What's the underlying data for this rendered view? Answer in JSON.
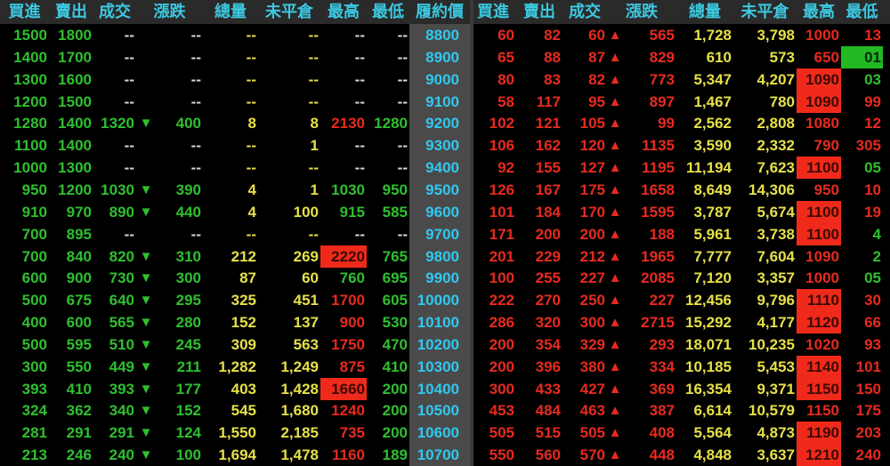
{
  "headers_left": [
    "買進",
    "賣出",
    "成交",
    "漲跌",
    "總量",
    "未平倉",
    "最高",
    "最低"
  ],
  "header_strike": "履約價",
  "headers_right": [
    "買進",
    "賣出",
    "成交",
    "漲跌",
    "總量",
    "未平倉",
    "最高",
    "最低"
  ],
  "colors": {
    "up": "#e82a1e",
    "down": "#2fbf2f",
    "volume": "#e6e048",
    "strike": "#30c8f0",
    "header": "#3cc8e0"
  },
  "calls": [
    {
      "bid": "1500",
      "ask": "1800",
      "last": "--",
      "arrow": "",
      "chg": "--",
      "vol": "--",
      "oi": "--",
      "high": "--",
      "high_style": "w",
      "low": "--",
      "low_style": "w"
    },
    {
      "bid": "1400",
      "ask": "1700",
      "last": "--",
      "arrow": "",
      "chg": "--",
      "vol": "--",
      "oi": "--",
      "high": "--",
      "high_style": "w",
      "low": "--",
      "low_style": "w"
    },
    {
      "bid": "1300",
      "ask": "1600",
      "last": "--",
      "arrow": "",
      "chg": "--",
      "vol": "--",
      "oi": "--",
      "high": "--",
      "high_style": "w",
      "low": "--",
      "low_style": "w"
    },
    {
      "bid": "1200",
      "ask": "1500",
      "last": "--",
      "arrow": "",
      "chg": "--",
      "vol": "--",
      "oi": "--",
      "high": "--",
      "high_style": "w",
      "low": "--",
      "low_style": "w"
    },
    {
      "bid": "1280",
      "ask": "1400",
      "last": "1320",
      "arrow": "▼",
      "chg": "400",
      "vol": "8",
      "oi": "8",
      "high": "2130",
      "high_style": "r",
      "low": "1280",
      "low_style": "g"
    },
    {
      "bid": "1100",
      "ask": "1400",
      "last": "--",
      "arrow": "",
      "chg": "--",
      "vol": "--",
      "oi": "1",
      "high": "--",
      "high_style": "w",
      "low": "--",
      "low_style": "w"
    },
    {
      "bid": "1000",
      "ask": "1300",
      "last": "--",
      "arrow": "",
      "chg": "--",
      "vol": "--",
      "oi": "--",
      "high": "--",
      "high_style": "w",
      "low": "--",
      "low_style": "w"
    },
    {
      "bid": "950",
      "ask": "1200",
      "last": "1030",
      "arrow": "▼",
      "chg": "390",
      "vol": "4",
      "oi": "1",
      "high": "1030",
      "high_style": "g",
      "low": "950",
      "low_style": "g"
    },
    {
      "bid": "910",
      "ask": "970",
      "last": "890",
      "arrow": "▼",
      "chg": "440",
      "vol": "4",
      "oi": "100",
      "high": "915",
      "high_style": "g",
      "low": "585",
      "low_style": "g"
    },
    {
      "bid": "700",
      "ask": "895",
      "last": "--",
      "arrow": "",
      "chg": "--",
      "vol": "--",
      "oi": "--",
      "high": "--",
      "high_style": "w",
      "low": "--",
      "low_style": "w"
    },
    {
      "bid": "700",
      "ask": "840",
      "last": "820",
      "arrow": "▼",
      "chg": "310",
      "vol": "212",
      "oi": "269",
      "high": "2220",
      "high_style": "R",
      "low": "765",
      "low_style": "g"
    },
    {
      "bid": "600",
      "ask": "900",
      "last": "730",
      "arrow": "▼",
      "chg": "300",
      "vol": "87",
      "oi": "60",
      "high": "760",
      "high_style": "g",
      "low": "695",
      "low_style": "g"
    },
    {
      "bid": "500",
      "ask": "675",
      "last": "640",
      "arrow": "▼",
      "chg": "295",
      "vol": "325",
      "oi": "451",
      "high": "1700",
      "high_style": "r",
      "low": "605",
      "low_style": "g"
    },
    {
      "bid": "400",
      "ask": "600",
      "last": "565",
      "arrow": "▼",
      "chg": "280",
      "vol": "152",
      "oi": "137",
      "high": "900",
      "high_style": "r",
      "low": "530",
      "low_style": "g"
    },
    {
      "bid": "500",
      "ask": "595",
      "last": "510",
      "arrow": "▼",
      "chg": "245",
      "vol": "309",
      "oi": "563",
      "high": "1750",
      "high_style": "r",
      "low": "470",
      "low_style": "g"
    },
    {
      "bid": "300",
      "ask": "550",
      "last": "449",
      "arrow": "▼",
      "chg": "211",
      "vol": "1,282",
      "oi": "1,249",
      "high": "875",
      "high_style": "r",
      "low": "410",
      "low_style": "g"
    },
    {
      "bid": "393",
      "ask": "410",
      "last": "393",
      "arrow": "▼",
      "chg": "177",
      "vol": "403",
      "oi": "1,428",
      "high": "1660",
      "high_style": "R",
      "low": "200",
      "low_style": "g"
    },
    {
      "bid": "324",
      "ask": "362",
      "last": "340",
      "arrow": "▼",
      "chg": "152",
      "vol": "545",
      "oi": "1,680",
      "high": "1240",
      "high_style": "r",
      "low": "200",
      "low_style": "g"
    },
    {
      "bid": "281",
      "ask": "291",
      "last": "291",
      "arrow": "▼",
      "chg": "124",
      "vol": "1,550",
      "oi": "2,185",
      "high": "735",
      "high_style": "r",
      "low": "200",
      "low_style": "g"
    },
    {
      "bid": "213",
      "ask": "246",
      "last": "240",
      "arrow": "▼",
      "chg": "100",
      "vol": "1,694",
      "oi": "1,478",
      "high": "1160",
      "high_style": "r",
      "low": "189",
      "low_style": "g"
    }
  ],
  "strikes": [
    "8800",
    "8900",
    "9000",
    "9100",
    "9200",
    "9300",
    "9400",
    "9500",
    "9600",
    "9700",
    "9800",
    "9900",
    "10000",
    "10100",
    "10200",
    "10300",
    "10400",
    "10500",
    "10600",
    "10700"
  ],
  "puts": [
    {
      "bid": "60",
      "ask": "82",
      "last": "60",
      "arrow": "▲",
      "chg": "565",
      "vol": "1,728",
      "oi": "3,798",
      "high": "1000",
      "high_style": "r",
      "low": "13",
      "low_style": "r"
    },
    {
      "bid": "65",
      "ask": "88",
      "last": "87",
      "arrow": "▲",
      "chg": "829",
      "vol": "610",
      "oi": "573",
      "high": "650",
      "high_style": "r",
      "low": "01",
      "low_style": "G"
    },
    {
      "bid": "80",
      "ask": "83",
      "last": "82",
      "arrow": "▲",
      "chg": "773",
      "vol": "5,347",
      "oi": "4,207",
      "high": "1090",
      "high_style": "R",
      "low": "03",
      "low_style": "g"
    },
    {
      "bid": "58",
      "ask": "117",
      "last": "95",
      "arrow": "▲",
      "chg": "897",
      "vol": "1,467",
      "oi": "780",
      "high": "1090",
      "high_style": "R",
      "low": "99",
      "low_style": "r"
    },
    {
      "bid": "102",
      "ask": "121",
      "last": "105",
      "arrow": "▲",
      "chg": "99",
      "vol": "2,562",
      "oi": "2,808",
      "high": "1080",
      "high_style": "r",
      "low": "12",
      "low_style": "r"
    },
    {
      "bid": "106",
      "ask": "162",
      "last": "120",
      "arrow": "▲",
      "chg": "1135",
      "vol": "3,590",
      "oi": "2,332",
      "high": "790",
      "high_style": "r",
      "low": "305",
      "low_style": "r"
    },
    {
      "bid": "92",
      "ask": "155",
      "last": "127",
      "arrow": "▲",
      "chg": "1195",
      "vol": "11,194",
      "oi": "7,623",
      "high": "1100",
      "high_style": "R",
      "low": "05",
      "low_style": "g"
    },
    {
      "bid": "126",
      "ask": "167",
      "last": "175",
      "arrow": "▲",
      "chg": "1658",
      "vol": "8,649",
      "oi": "14,306",
      "high": "950",
      "high_style": "r",
      "low": "10",
      "low_style": "r"
    },
    {
      "bid": "101",
      "ask": "184",
      "last": "170",
      "arrow": "▲",
      "chg": "1595",
      "vol": "3,787",
      "oi": "5,674",
      "high": "1100",
      "high_style": "R",
      "low": "19",
      "low_style": "r"
    },
    {
      "bid": "171",
      "ask": "200",
      "last": "200",
      "arrow": "▲",
      "chg": "188",
      "vol": "5,961",
      "oi": "3,738",
      "high": "1100",
      "high_style": "R",
      "low": "4",
      "low_style": "g"
    },
    {
      "bid": "201",
      "ask": "229",
      "last": "212",
      "arrow": "▲",
      "chg": "1965",
      "vol": "7,777",
      "oi": "7,604",
      "high": "1090",
      "high_style": "r",
      "low": "2",
      "low_style": "g"
    },
    {
      "bid": "100",
      "ask": "255",
      "last": "227",
      "arrow": "▲",
      "chg": "2085",
      "vol": "7,120",
      "oi": "3,357",
      "high": "1000",
      "high_style": "r",
      "low": "05",
      "low_style": "g"
    },
    {
      "bid": "222",
      "ask": "270",
      "last": "250",
      "arrow": "▲",
      "chg": "227",
      "vol": "12,456",
      "oi": "9,796",
      "high": "1110",
      "high_style": "R",
      "low": "30",
      "low_style": "r"
    },
    {
      "bid": "286",
      "ask": "320",
      "last": "300",
      "arrow": "▲",
      "chg": "2715",
      "vol": "15,292",
      "oi": "4,177",
      "high": "1120",
      "high_style": "R",
      "low": "66",
      "low_style": "r"
    },
    {
      "bid": "200",
      "ask": "354",
      "last": "329",
      "arrow": "▲",
      "chg": "293",
      "vol": "18,071",
      "oi": "10,235",
      "high": "1020",
      "high_style": "r",
      "low": "93",
      "low_style": "r"
    },
    {
      "bid": "200",
      "ask": "396",
      "last": "380",
      "arrow": "▲",
      "chg": "334",
      "vol": "10,185",
      "oi": "5,453",
      "high": "1140",
      "high_style": "R",
      "low": "101",
      "low_style": "r"
    },
    {
      "bid": "300",
      "ask": "433",
      "last": "427",
      "arrow": "▲",
      "chg": "369",
      "vol": "16,354",
      "oi": "9,371",
      "high": "1150",
      "high_style": "R",
      "low": "150",
      "low_style": "r"
    },
    {
      "bid": "453",
      "ask": "484",
      "last": "463",
      "arrow": "▲",
      "chg": "387",
      "vol": "6,614",
      "oi": "10,579",
      "high": "1150",
      "high_style": "r",
      "low": "175",
      "low_style": "r"
    },
    {
      "bid": "505",
      "ask": "515",
      "last": "505",
      "arrow": "▲",
      "chg": "408",
      "vol": "5,564",
      "oi": "4,873",
      "high": "1190",
      "high_style": "R",
      "low": "203",
      "low_style": "r"
    },
    {
      "bid": "550",
      "ask": "560",
      "last": "570",
      "arrow": "▲",
      "chg": "448",
      "vol": "4,848",
      "oi": "3,637",
      "high": "1210",
      "high_style": "R",
      "low": "240",
      "low_style": "r"
    }
  ]
}
